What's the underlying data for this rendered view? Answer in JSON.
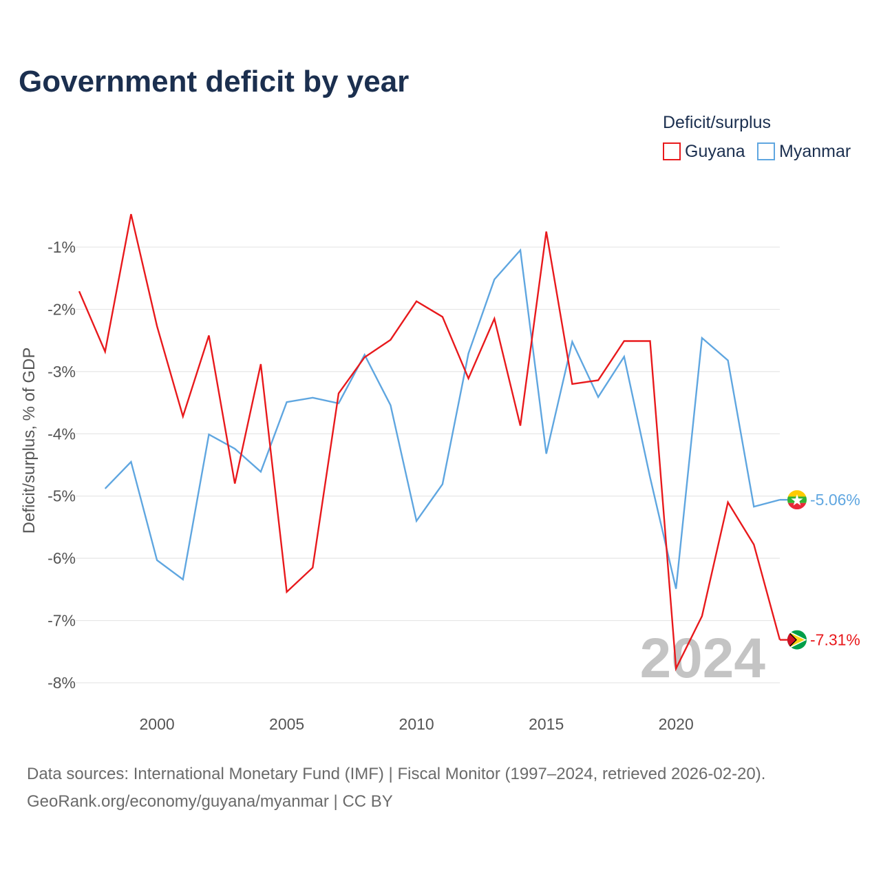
{
  "chart_data": {
    "type": "line",
    "title": "Government deficit by year",
    "ylabel": "Deficit/surplus, % of GDP",
    "xlabel": "",
    "xlim": [
      1997,
      2024
    ],
    "ylim": [
      -8,
      -1
    ],
    "x_ticks": [
      2000,
      2005,
      2010,
      2015,
      2020
    ],
    "x_tick_labels": [
      "2000",
      "2005",
      "2010",
      "2015",
      "2020"
    ],
    "y_ticks": [
      -1,
      -2,
      -3,
      -4,
      -5,
      -6,
      -7,
      -8
    ],
    "y_tick_labels": [
      "-1%",
      "-2%",
      "-3%",
      "-4%",
      "-5%",
      "-6%",
      "-7%",
      "-8%"
    ],
    "legend_title": "Deficit/surplus",
    "legend_position": "top-right",
    "watermark_year": "2024",
    "series": [
      {
        "name": "Guyana",
        "color": "#e8191c",
        "end_label": "-7.31%",
        "flag": "guyana-flag",
        "x": [
          1997,
          1998,
          1999,
          2000,
          2001,
          2002,
          2003,
          2004,
          2005,
          2006,
          2007,
          2008,
          2009,
          2010,
          2011,
          2012,
          2013,
          2014,
          2015,
          2016,
          2017,
          2018,
          2019,
          2020,
          2021,
          2022,
          2023,
          2024
        ],
        "values": [
          -1.71,
          -2.68,
          -0.47,
          -2.27,
          -3.72,
          -2.42,
          -4.8,
          -2.88,
          -6.54,
          -6.15,
          -3.35,
          -2.77,
          -2.49,
          -1.87,
          -2.12,
          -3.11,
          -2.15,
          -3.87,
          -0.75,
          -3.2,
          -3.14,
          -2.51,
          -2.51,
          -7.77,
          -6.93,
          -5.1,
          -5.78,
          -7.31
        ]
      },
      {
        "name": "Myanmar",
        "color": "#5fa6e0",
        "end_label": "-5.06%",
        "flag": "myanmar-flag",
        "x": [
          1998,
          1999,
          2000,
          2001,
          2002,
          2003,
          2004,
          2005,
          2006,
          2007,
          2008,
          2009,
          2010,
          2011,
          2012,
          2013,
          2014,
          2015,
          2016,
          2017,
          2018,
          2019,
          2020,
          2021,
          2022,
          2023,
          2024
        ],
        "values": [
          -4.88,
          -4.45,
          -6.03,
          -6.34,
          -4.01,
          -4.24,
          -4.61,
          -3.49,
          -3.42,
          -3.51,
          -2.73,
          -3.54,
          -5.4,
          -4.81,
          -2.71,
          -1.52,
          -1.05,
          -4.32,
          -2.52,
          -3.41,
          -2.76,
          -4.7,
          -6.49,
          -2.46,
          -2.82,
          -5.17,
          -5.06
        ]
      }
    ]
  },
  "source": {
    "line1": "Data sources: International Monetary Fund (IMF) | Fiscal Monitor (1997–2024, retrieved 2026-02-20).",
    "line2": "GeoRank.org/economy/guyana/myanmar | CC BY"
  }
}
